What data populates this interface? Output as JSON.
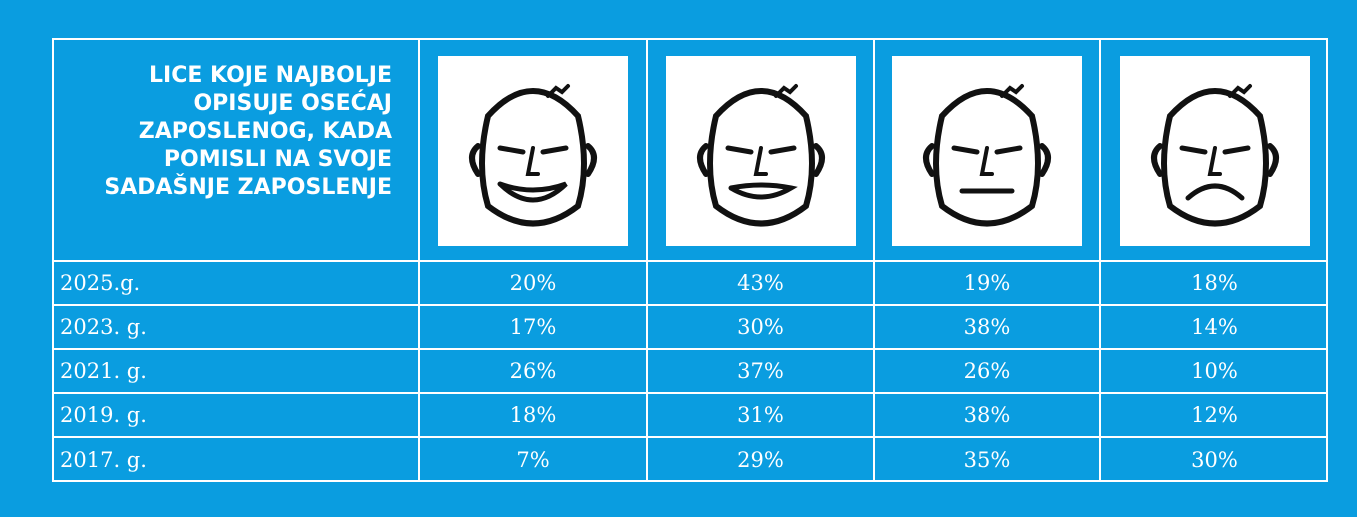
{
  "header": {
    "title_lines": [
      "LICE KOJE NAJBOLJE",
      "OPISUJE OSEĆAJ",
      "ZAPOSLENOG, KADA",
      "POMISLI NA SVOJE",
      "SADAŠNJE ZAPOSLENJE"
    ]
  },
  "table": {
    "rows": [
      [
        "2025.g.",
        "20%",
        "43%",
        "19%",
        "18%"
      ],
      [
        "2023. g.",
        "17%",
        "30%",
        "38%",
        "14%"
      ],
      [
        "2021. g.",
        "26%",
        "37%",
        "26%",
        "10%"
      ],
      [
        "2019. g.",
        "18%",
        "31%",
        "38%",
        "12%"
      ],
      [
        "2017. g.",
        "7%",
        "29%",
        "35%",
        "30%"
      ]
    ]
  }
}
